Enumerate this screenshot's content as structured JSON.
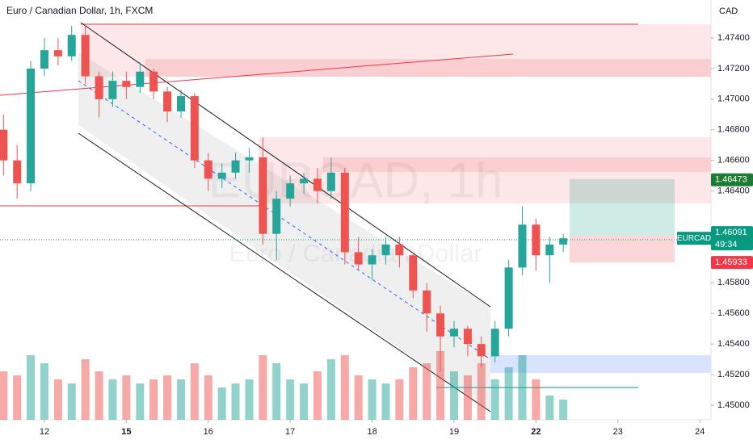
{
  "chart_data": {
    "type": "candlestick",
    "title": "Euro / Canadian Dollar, 1h, FXCM",
    "currency": "CAD",
    "watermark": "EURCAD, 1h",
    "watermark_subtitle": "Euro / Canadian Dollar",
    "xlim": [
      -0.542,
      8.136
    ],
    "xticks": [
      {
        "value": 0,
        "label": "12"
      },
      {
        "value": 1,
        "label": "15"
      },
      {
        "value": 2,
        "label": "16"
      },
      {
        "value": 3,
        "label": "17"
      },
      {
        "value": 4,
        "label": "18"
      },
      {
        "value": 5,
        "label": "19"
      },
      {
        "value": 6,
        "label": "22"
      },
      {
        "value": 7,
        "label": "23"
      },
      {
        "value": 8,
        "label": "24"
      }
    ],
    "ylim": [
      1.44905,
      1.47648
    ],
    "yticks": [
      {
        "value": 1.474,
        "label": "1.47400"
      },
      {
        "value": 1.472,
        "label": "1.47200"
      },
      {
        "value": 1.47,
        "label": "1.47000"
      },
      {
        "value": 1.468,
        "label": "1.46800"
      },
      {
        "value": 1.466,
        "label": "1.46600"
      },
      {
        "value": 1.464,
        "label": "1.46400"
      },
      {
        "value": 1.458,
        "label": "1.45800"
      },
      {
        "value": 1.456,
        "label": "1.45600"
      },
      {
        "value": 1.454,
        "label": "1.45400"
      },
      {
        "value": 1.452,
        "label": "1.45200"
      },
      {
        "value": 1.45,
        "label": "1.45000"
      }
    ],
    "up_color": "#26a69a",
    "down_color": "#ef5350",
    "volume_lim": [
      0,
      120
    ],
    "candles": {
      "x": [
        -0.5,
        -0.333,
        -0.167,
        0,
        0.167,
        0.333,
        0.5,
        0.667,
        0.833,
        1,
        1.167,
        1.333,
        1.5,
        1.667,
        1.833,
        2,
        2.167,
        2.333,
        2.5,
        2.667,
        2.833,
        3,
        3.167,
        3.333,
        3.5,
        3.667,
        3.833,
        4,
        4.167,
        4.333,
        4.5,
        4.667,
        4.833,
        5,
        5.167,
        5.333,
        5.5,
        5.667,
        5.833,
        6,
        6.167,
        6.333
      ],
      "open": [
        1.468,
        1.466,
        1.4645,
        1.472,
        1.4732,
        1.4728,
        1.4742,
        1.4715,
        1.47,
        1.4712,
        1.4708,
        1.4718,
        1.4705,
        1.4692,
        1.4702,
        1.466,
        1.4648,
        1.4652,
        1.466,
        1.4662,
        1.4612,
        1.4635,
        1.4645,
        1.4648,
        1.464,
        1.4652,
        1.46,
        1.4592,
        1.4598,
        1.4605,
        1.4598,
        1.4575,
        1.456,
        1.4545,
        1.455,
        1.454,
        1.4532,
        1.455,
        1.459,
        1.4618,
        1.4598,
        1.4605
      ],
      "high": [
        1.469,
        1.467,
        1.4725,
        1.474,
        1.474,
        1.4748,
        1.4748,
        1.4718,
        1.4718,
        1.4718,
        1.4724,
        1.472,
        1.4708,
        1.4706,
        1.4704,
        1.4665,
        1.4658,
        1.4665,
        1.4668,
        1.4675,
        1.464,
        1.465,
        1.4652,
        1.4655,
        1.4662,
        1.4655,
        1.461,
        1.4602,
        1.461,
        1.461,
        1.46,
        1.458,
        1.4565,
        1.4555,
        1.4552,
        1.4545,
        1.4555,
        1.4595,
        1.463,
        1.4622,
        1.461,
        1.4612
      ],
      "low": [
        1.465,
        1.4635,
        1.464,
        1.4715,
        1.4722,
        1.4725,
        1.471,
        1.4688,
        1.4695,
        1.47,
        1.4704,
        1.47,
        1.4685,
        1.4688,
        1.4655,
        1.464,
        1.4642,
        1.4648,
        1.4652,
        1.4605,
        1.4595,
        1.463,
        1.4638,
        1.4632,
        1.4635,
        1.4592,
        1.4588,
        1.4582,
        1.4592,
        1.459,
        1.457,
        1.4548,
        1.4522,
        1.4538,
        1.4532,
        1.4525,
        1.4528,
        1.4545,
        1.4585,
        1.4588,
        1.458,
        1.46
      ],
      "close": [
        1.466,
        1.4645,
        1.472,
        1.4732,
        1.4728,
        1.4742,
        1.4715,
        1.47,
        1.4712,
        1.4708,
        1.4718,
        1.4705,
        1.4692,
        1.4702,
        1.466,
        1.4648,
        1.4652,
        1.466,
        1.4662,
        1.4612,
        1.4635,
        1.4645,
        1.4648,
        1.464,
        1.4652,
        1.46,
        1.4592,
        1.4598,
        1.4605,
        1.4598,
        1.4575,
        1.456,
        1.4545,
        1.455,
        1.454,
        1.4532,
        1.455,
        1.459,
        1.4618,
        1.4598,
        1.4605,
        1.46091
      ],
      "volume": [
        60,
        55,
        80,
        70,
        50,
        45,
        75,
        60,
        50,
        55,
        45,
        50,
        55,
        50,
        70,
        55,
        40,
        45,
        50,
        80,
        70,
        50,
        45,
        60,
        75,
        80,
        55,
        50,
        45,
        50,
        65,
        70,
        85,
        60,
        55,
        70,
        50,
        65,
        80,
        50,
        30,
        25
      ]
    },
    "target": 1.46473,
    "entry": 1.46109,
    "symbol": "EURCAD",
    "last_price": 1.46091,
    "countdown": "49:34",
    "stop": 1.45933
  }
}
